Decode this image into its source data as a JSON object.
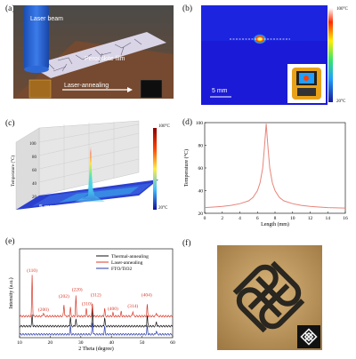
{
  "panels": {
    "a": {
      "label": "(a)",
      "laser_beam": "Laser beam",
      "film": "Perovskite film",
      "process": "Laser-annealing"
    },
    "b": {
      "label": "(b)",
      "scale_max": "100°C",
      "scale_min": "20°C",
      "scalebar": "5 mm"
    },
    "c": {
      "label": "(c)",
      "ylabel": "Temperature (°C)",
      "yticks": [
        "20",
        "40",
        "60",
        "80",
        "100"
      ],
      "scalebar": "5 mm",
      "scale_max": "100°C",
      "scale_min": "20°C"
    },
    "d": {
      "label": "(d)"
    },
    "e": {
      "label": "(e)",
      "peaks": [
        {
          "t": "(110)",
          "x": 14.1,
          "y": 8.9
        },
        {
          "t": "(200)",
          "x": 17.8,
          "y": 3.6
        },
        {
          "t": "(202)",
          "x": 24.5,
          "y": 5.4
        },
        {
          "t": "(220)",
          "x": 28.8,
          "y": 6.3
        },
        {
          "t": "(310)",
          "x": 32.0,
          "y": 4.4
        },
        {
          "t": "(312)",
          "x": 34.9,
          "y": 5.6
        },
        {
          "t": "(400)",
          "x": 40.5,
          "y": 3.7
        },
        {
          "t": "(314)",
          "x": 47.0,
          "y": 4.1
        },
        {
          "t": "(404)",
          "x": 51.5,
          "y": 5.6
        }
      ]
    },
    "f": {
      "label": "(f)"
    }
  },
  "chart_data": [
    {
      "type": "line",
      "xlabel": "Length (mm)",
      "ylabel": "Temperature (°C)",
      "xlim": [
        0,
        16
      ],
      "ylim": [
        20,
        100
      ],
      "xticks": [
        "0",
        "2",
        "4",
        "6",
        "8",
        "10",
        "12",
        "14",
        "16"
      ],
      "yticks": [
        "20",
        "40",
        "60",
        "80",
        "100"
      ],
      "color": "#e8847a",
      "x": [
        0,
        1,
        2,
        3,
        4,
        5,
        5.5,
        6,
        6.3,
        6.6,
        6.8,
        7.0,
        7.2,
        7.4,
        7.7,
        8.0,
        8.5,
        9,
        10,
        11,
        12,
        13,
        14,
        15,
        16
      ],
      "y": [
        25,
        25.5,
        26,
        27,
        28.5,
        31,
        34,
        40,
        47,
        60,
        78,
        99,
        78,
        60,
        47,
        40,
        34,
        31,
        28.5,
        27,
        26,
        25.5,
        25,
        24.8,
        24.6
      ]
    },
    {
      "type": "line",
      "xlabel": "2 Theta (degree)",
      "ylabel": "Intensity (a.u.)",
      "xlim": [
        10,
        60
      ],
      "xticks": [
        "10",
        "20",
        "30",
        "40",
        "50",
        "60"
      ],
      "legend": "top-right",
      "series": [
        {
          "name": "Thermal-annealing",
          "color": "#111111",
          "base": 1.55,
          "peaks": [
            [
              14.1,
              1.5
            ],
            [
              28.4,
              1.0
            ],
            [
              26.6,
              1.3
            ],
            [
              33.8,
              2.3
            ],
            [
              37.8,
              1.2
            ],
            [
              51.7,
              1.4
            ],
            [
              54.7,
              0.6
            ]
          ]
        },
        {
          "name": "Laser-annealing",
          "color": "#d93a2b",
          "base": 2.9,
          "peaks": [
            [
              14.1,
              5.6
            ],
            [
              17.8,
              0.5
            ],
            [
              24.5,
              1.6
            ],
            [
              26.6,
              1.2
            ],
            [
              28.4,
              2.7
            ],
            [
              31.8,
              1.0
            ],
            [
              33.8,
              1.6
            ],
            [
              37.8,
              1.0
            ],
            [
              40.5,
              0.4
            ],
            [
              43.2,
              0.6
            ],
            [
              47.0,
              0.7
            ],
            [
              51.7,
              1.5
            ],
            [
              54.7,
              0.5
            ]
          ]
        },
        {
          "name": "FTO/TiO2",
          "color": "#2a3aa8",
          "base": 0.45,
          "peaks": [
            [
              26.6,
              1.1
            ],
            [
              33.8,
              1.6
            ],
            [
              37.8,
              1.0
            ],
            [
              51.7,
              1.1
            ],
            [
              54.7,
              0.5
            ]
          ]
        }
      ]
    }
  ]
}
